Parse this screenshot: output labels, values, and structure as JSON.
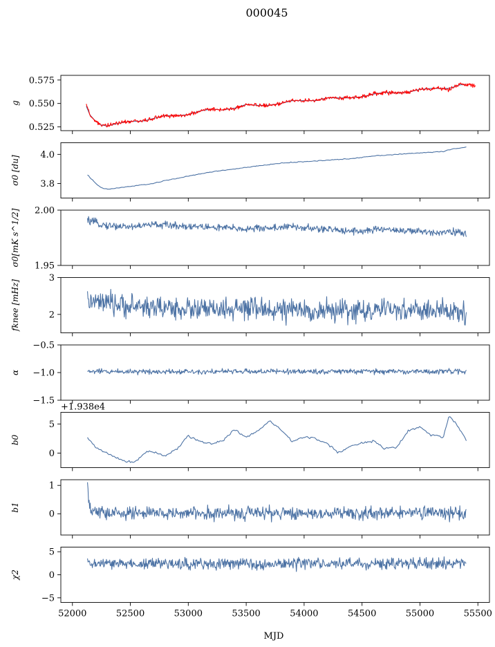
{
  "figure": {
    "title": "000045",
    "xlabel": "MJD"
  },
  "colors": {
    "series": "#4c72a4",
    "overlay": "#ff0000",
    "axes": "#000000"
  },
  "chart_data": [
    {
      "id": "g",
      "type": "line",
      "ylabel": "g",
      "ylim": [
        0.521,
        0.58
      ],
      "xlim": [
        51900,
        55600
      ],
      "yticks": [
        0.525,
        0.55,
        0.575
      ],
      "ytick_labels": [
        "0.525",
        "0.550",
        "0.575"
      ],
      "show_xtick_labels": false,
      "series": [
        {
          "style": "smooth",
          "color": "#4c72a4",
          "x": [
            52120,
            52150,
            52200,
            52250,
            52300,
            52400,
            52500,
            52600,
            52700,
            52800,
            52900,
            53000,
            53100,
            53200,
            53300,
            53400,
            53500,
            53600,
            53700,
            53800,
            53900,
            54000,
            54100,
            54200,
            54300,
            54400,
            54500,
            54600,
            54700,
            54800,
            54900,
            55000,
            55100,
            55200,
            55250,
            55300,
            55350,
            55400
          ],
          "y": [
            0.547,
            0.538,
            0.531,
            0.527,
            0.526,
            0.529,
            0.531,
            0.531,
            0.534,
            0.537,
            0.537,
            0.538,
            0.542,
            0.544,
            0.543,
            0.545,
            0.549,
            0.548,
            0.548,
            0.55,
            0.553,
            0.553,
            0.553,
            0.556,
            0.556,
            0.556,
            0.557,
            0.56,
            0.562,
            0.561,
            0.562,
            0.565,
            0.566,
            0.566,
            0.566,
            0.568,
            0.57,
            0.57
          ]
        },
        {
          "style": "noisy",
          "color": "#ff0000",
          "amp": 0.0022,
          "x": [
            52120,
            52150,
            52200,
            52250,
            52300,
            52400,
            52500,
            52600,
            52700,
            52800,
            52900,
            53000,
            53100,
            53200,
            53300,
            53400,
            53500,
            53600,
            53700,
            53800,
            53900,
            54000,
            54100,
            54200,
            54300,
            54400,
            54500,
            54600,
            54700,
            54800,
            54900,
            55000,
            55100,
            55200,
            55250,
            55300,
            55350,
            55400,
            55480
          ],
          "y": [
            0.549,
            0.538,
            0.531,
            0.527,
            0.526,
            0.529,
            0.531,
            0.531,
            0.534,
            0.537,
            0.537,
            0.538,
            0.542,
            0.544,
            0.543,
            0.545,
            0.549,
            0.548,
            0.548,
            0.55,
            0.553,
            0.553,
            0.553,
            0.556,
            0.556,
            0.556,
            0.557,
            0.56,
            0.562,
            0.561,
            0.562,
            0.565,
            0.566,
            0.566,
            0.564,
            0.568,
            0.571,
            0.57,
            0.569
          ]
        }
      ]
    },
    {
      "id": "sigma0_du",
      "type": "line",
      "ylabel": "σ0 [du]",
      "ylim": [
        3.7,
        4.08
      ],
      "xlim": [
        51900,
        55600
      ],
      "yticks": [
        3.8,
        4.0
      ],
      "ytick_labels": [
        "3.8",
        "4.0"
      ],
      "show_xtick_labels": false,
      "series": [
        {
          "style": "smooth",
          "color": "#4c72a4",
          "amp": 0.004,
          "x": [
            52130,
            52200,
            52250,
            52300,
            52400,
            52500,
            52600,
            52700,
            52800,
            53000,
            53200,
            53400,
            53600,
            53800,
            54000,
            54200,
            54400,
            54600,
            54800,
            55000,
            55200,
            55300,
            55400
          ],
          "y": [
            3.86,
            3.8,
            3.77,
            3.76,
            3.77,
            3.78,
            3.79,
            3.8,
            3.82,
            3.85,
            3.88,
            3.9,
            3.92,
            3.94,
            3.95,
            3.96,
            3.97,
            3.99,
            4.0,
            4.01,
            4.02,
            4.04,
            4.05
          ]
        }
      ]
    },
    {
      "id": "sigma0_mK",
      "type": "line",
      "ylabel": "σ0[mK s^1/2]",
      "ylim": [
        1.95,
        2.0
      ],
      "xlim": [
        51900,
        55600
      ],
      "yticks": [
        1.95,
        2.0
      ],
      "ytick_labels": [
        "1.95",
        "2.00"
      ],
      "show_xtick_labels": false,
      "series": [
        {
          "style": "noisy",
          "color": "#4c72a4",
          "amp": 0.0035,
          "x": [
            52130,
            52300,
            52500,
            52700,
            52900,
            53100,
            53300,
            53500,
            53700,
            53900,
            54100,
            54300,
            54500,
            54700,
            54900,
            55100,
            55300,
            55400
          ],
          "y": [
            1.9905,
            1.986,
            1.985,
            1.987,
            1.986,
            1.985,
            1.984,
            1.983,
            1.984,
            1.985,
            1.983,
            1.982,
            1.981,
            1.983,
            1.981,
            1.98,
            1.981,
            1.9775
          ]
        }
      ]
    },
    {
      "id": "fknee",
      "type": "line",
      "ylabel": "fknee [mHz]",
      "ylim": [
        1.5,
        3.0
      ],
      "xlim": [
        51900,
        55600
      ],
      "yticks": [
        2,
        3
      ],
      "ytick_labels": [
        "2",
        "3"
      ],
      "show_xtick_labels": false,
      "series": [
        {
          "style": "noisy",
          "color": "#4c72a4",
          "amp": 0.32,
          "x": [
            52130,
            52400,
            52700,
            53000,
            53300,
            53600,
            53900,
            54200,
            54500,
            54800,
            55100,
            55400
          ],
          "y": [
            2.35,
            2.25,
            2.2,
            2.15,
            2.12,
            2.15,
            2.1,
            2.1,
            2.1,
            2.12,
            2.1,
            2.05
          ]
        }
      ]
    },
    {
      "id": "alpha",
      "type": "line",
      "ylabel": "α",
      "ylim": [
        -1.5,
        -0.5
      ],
      "xlim": [
        51900,
        55600
      ],
      "yticks": [
        -1.5,
        -1.0,
        -0.5
      ],
      "ytick_labels": [
        "−1.5",
        "−1.0",
        "−0.5"
      ],
      "show_xtick_labels": false,
      "series": [
        {
          "style": "noisy",
          "color": "#4c72a4",
          "amp": 0.05,
          "x": [
            52130,
            55400
          ],
          "y": [
            -0.98,
            -0.98
          ]
        }
      ]
    },
    {
      "id": "b0",
      "type": "line",
      "ylabel": "b0",
      "offset_label": "+1.938e4",
      "ylim": [
        -2.5,
        7
      ],
      "xlim": [
        51900,
        55600
      ],
      "yticks": [
        0,
        5
      ],
      "ytick_labels": [
        "0",
        "5"
      ],
      "show_xtick_labels": false,
      "series": [
        {
          "style": "smooth",
          "color": "#4c72a4",
          "amp": 0.3,
          "x": [
            52130,
            52200,
            52300,
            52400,
            52500,
            52550,
            52650,
            52700,
            52800,
            52900,
            53000,
            53100,
            53200,
            53300,
            53400,
            53500,
            53600,
            53700,
            53800,
            53900,
            54000,
            54100,
            54200,
            54300,
            54400,
            54500,
            54600,
            54700,
            54800,
            54900,
            55000,
            55100,
            55150,
            55200,
            55250,
            55300,
            55350,
            55400
          ],
          "y": [
            2.6,
            1.0,
            0.0,
            -1.0,
            -1.6,
            -1.3,
            0.4,
            0.2,
            -0.4,
            0.6,
            3.0,
            2.0,
            1.6,
            2.2,
            4.0,
            2.8,
            3.8,
            5.5,
            4.0,
            2.0,
            2.8,
            2.5,
            1.6,
            0.0,
            1.2,
            1.8,
            2.0,
            0.8,
            1.0,
            3.8,
            4.5,
            3.0,
            3.0,
            2.6,
            6.4,
            5.3,
            4.0,
            2.0
          ]
        }
      ]
    },
    {
      "id": "b1",
      "type": "line",
      "ylabel": "b1",
      "ylim": [
        -0.75,
        1.2
      ],
      "xlim": [
        51900,
        55600
      ],
      "yticks": [
        0,
        1
      ],
      "ytick_labels": [
        "0",
        "1"
      ],
      "show_xtick_labels": false,
      "series": [
        {
          "style": "noisy",
          "color": "#4c72a4",
          "amp": 0.25,
          "x": [
            52130,
            52150,
            52300,
            55400
          ],
          "y": [
            0.95,
            0.1,
            0.02,
            0.02
          ]
        }
      ]
    },
    {
      "id": "chi2",
      "type": "line",
      "ylabel": "χ2",
      "ylim": [
        -6,
        6
      ],
      "xlim": [
        51900,
        55600
      ],
      "yticks": [
        -5,
        0,
        5
      ],
      "ytick_labels": [
        "−5",
        "0",
        "5"
      ],
      "show_xtick_labels": true,
      "xticks": [
        52000,
        52500,
        53000,
        53500,
        54000,
        54500,
        55000,
        55500
      ],
      "xtick_labels": [
        "52000",
        "52500",
        "53000",
        "53500",
        "54000",
        "54500",
        "55000",
        "55500"
      ],
      "series": [
        {
          "style": "noisy",
          "color": "#4c72a4",
          "amp": 1.3,
          "x": [
            52130,
            55400
          ],
          "y": [
            2.4,
            2.4
          ]
        }
      ]
    }
  ]
}
